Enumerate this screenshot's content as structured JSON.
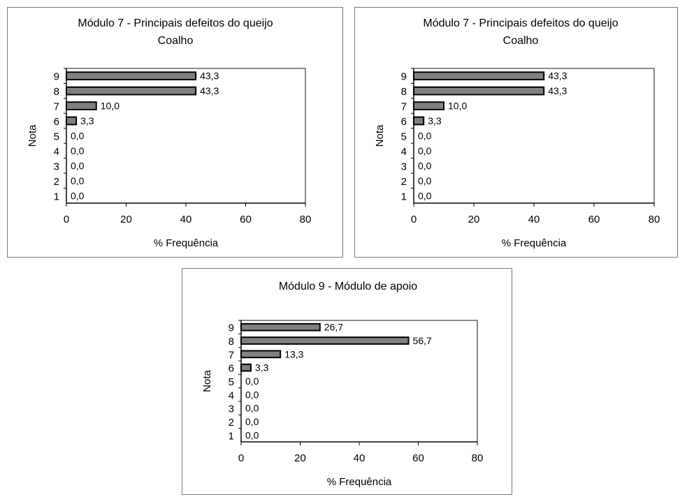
{
  "chart_data": [
    {
      "type": "bar",
      "orientation": "horizontal",
      "title": "Módulo 7 - Principais defeitos do queijo Coalho",
      "title_lines": [
        "Módulo 7 - Principais defeitos do queijo",
        "Coalho"
      ],
      "xlabel": "% Frequência",
      "ylabel": "Nota",
      "categories": [
        "9",
        "8",
        "7",
        "6",
        "5",
        "4",
        "3",
        "2",
        "1"
      ],
      "values": [
        43.3,
        43.3,
        10.0,
        3.3,
        0.0,
        0.0,
        0.0,
        0.0,
        0.0
      ],
      "data_labels": [
        "43,3",
        "43,3",
        "10,0",
        "3,3",
        "0,0",
        "0,0",
        "0,0",
        "0,0",
        "0,0"
      ],
      "xlim": [
        0,
        80
      ],
      "xticks": [
        "0",
        "20",
        "40",
        "60",
        "80"
      ],
      "grid": false,
      "bar_color": "#808080"
    },
    {
      "type": "bar",
      "orientation": "horizontal",
      "title": "Módulo 7 - Principais defeitos do queijo Coalho",
      "title_lines": [
        "Módulo 7 - Principais defeitos do queijo",
        "Coalho"
      ],
      "xlabel": "% Frequência",
      "ylabel": "Nota",
      "categories": [
        "9",
        "8",
        "7",
        "6",
        "5",
        "4",
        "3",
        "2",
        "1"
      ],
      "values": [
        43.3,
        43.3,
        10.0,
        3.3,
        0.0,
        0.0,
        0.0,
        0.0,
        0.0
      ],
      "data_labels": [
        "43,3",
        "43,3",
        "10,0",
        "3,3",
        "0,0",
        "0,0",
        "0,0",
        "0,0",
        "0,0"
      ],
      "xlim": [
        0,
        80
      ],
      "xticks": [
        "0",
        "20",
        "40",
        "60",
        "80"
      ],
      "grid": false,
      "bar_color": "#808080"
    },
    {
      "type": "bar",
      "orientation": "horizontal",
      "title": "Módulo 9 - Módulo de apoio",
      "title_lines": [
        "Módulo 9 - Módulo de apoio"
      ],
      "xlabel": "% Frequência",
      "ylabel": "Nota",
      "categories": [
        "9",
        "8",
        "7",
        "6",
        "5",
        "4",
        "3",
        "2",
        "1"
      ],
      "values": [
        26.7,
        56.7,
        13.3,
        3.3,
        0.0,
        0.0,
        0.0,
        0.0,
        0.0
      ],
      "data_labels": [
        "26,7",
        "56,7",
        "13,3",
        "3,3",
        "0,0",
        "0,0",
        "0,0",
        "0,0",
        "0,0"
      ],
      "xlim": [
        0,
        80
      ],
      "xticks": [
        "0",
        "20",
        "40",
        "60",
        "80"
      ],
      "grid": false,
      "bar_color": "#808080"
    }
  ]
}
